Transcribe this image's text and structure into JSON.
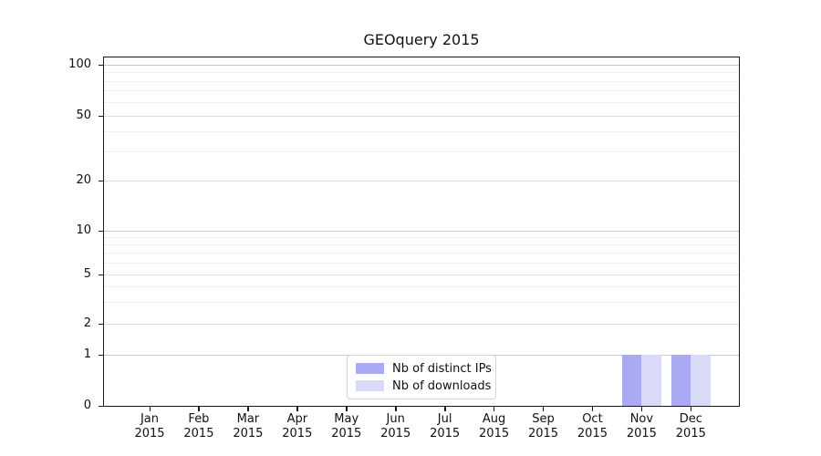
{
  "chart_data": {
    "type": "bar",
    "title": "GEOquery 2015",
    "categories": [
      "Jan 2015",
      "Feb 2015",
      "Mar 2015",
      "Apr 2015",
      "May 2015",
      "Jun 2015",
      "Jul 2015",
      "Aug 2015",
      "Sep 2015",
      "Oct 2015",
      "Nov 2015",
      "Dec 2015"
    ],
    "series": [
      {
        "name": "Nb of distinct IPs",
        "color": "#a9a9f4",
        "values": [
          0,
          0,
          0,
          0,
          0,
          0,
          0,
          0,
          0,
          0,
          1,
          1
        ]
      },
      {
        "name": "Nb of downloads",
        "color": "#d9d9f8",
        "values": [
          0,
          0,
          0,
          0,
          0,
          0,
          0,
          0,
          0,
          0,
          1,
          1
        ]
      }
    ],
    "xlabel": "",
    "ylabel": "",
    "yscale": "symlog",
    "ylim": [
      0,
      115
    ],
    "yticks": [
      0,
      1,
      2,
      5,
      10,
      20,
      50,
      100
    ],
    "minor_yticks": [
      3,
      4,
      6,
      7,
      8,
      9,
      30,
      40,
      60,
      70,
      80,
      90
    ],
    "grid": "horizontal major+minor",
    "legend_position": "inside lower-center"
  },
  "colors": {
    "bar_distinct_ips": "#a9a9f4",
    "bar_downloads": "#d9d9f8",
    "grid_decade": "#c9c9c9",
    "grid_major": "#dfdfdf",
    "grid_minor": "#f0f0f0",
    "axis": "#1a1a1a",
    "legend_border": "#d4d4d4",
    "background": "#ffffff"
  }
}
